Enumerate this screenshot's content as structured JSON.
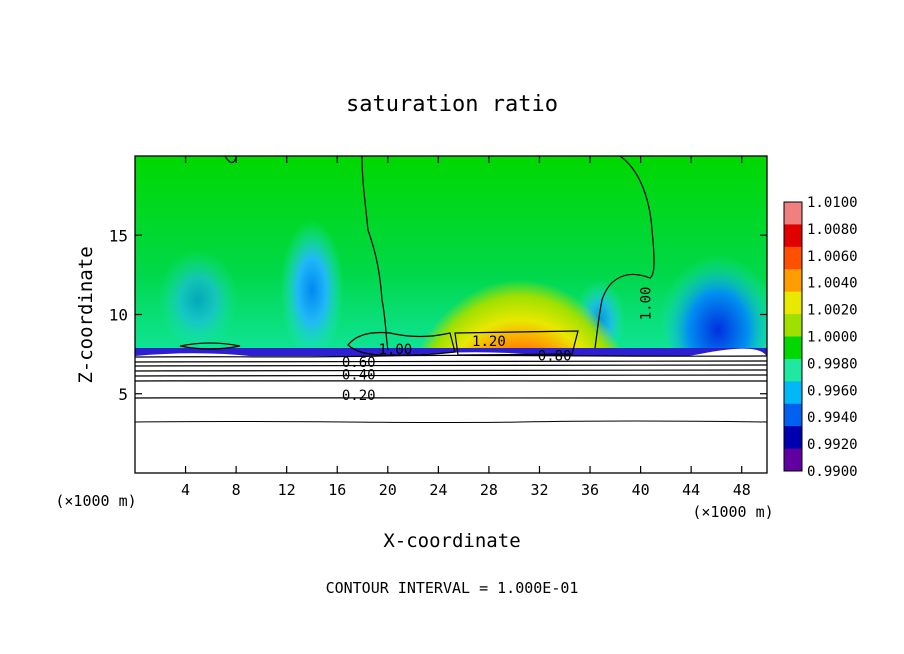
{
  "chart_data": {
    "type": "heatmap",
    "title": "saturation ratio",
    "xlabel": "X-coordinate",
    "ylabel": "Z-coordinate",
    "x_unit_label": "(×1000 m)",
    "z_unit_label": "(×1000 m)",
    "footer": "CONTOUR INTERVAL = 1.000E-01",
    "xlim": [
      0,
      50
    ],
    "ylim": [
      0,
      20
    ],
    "x_ticks": [
      4,
      8,
      12,
      16,
      20,
      24,
      28,
      32,
      36,
      40,
      44,
      48
    ],
    "y_ticks": [
      5,
      10,
      15
    ],
    "colorbar": {
      "levels": [
        "1.0100",
        "1.0080",
        "1.0060",
        "1.0040",
        "1.0020",
        "1.0000",
        "0.9980",
        "0.9960",
        "0.9940",
        "0.9920",
        "0.9900"
      ],
      "range": [
        0.99,
        1.01
      ],
      "colors": [
        "#f08080",
        "#e00000",
        "#ff5000",
        "#ff9c00",
        "#e8e800",
        "#a0e000",
        "#00d800",
        "#20e8a0",
        "#00b8f8",
        "#0060f0",
        "#0000b0",
        "#6000a0"
      ]
    },
    "contour_labels": [
      {
        "text": "1.00",
        "x": 40.8,
        "z": 10.7,
        "rotate": -90
      },
      {
        "text": "1.20",
        "x": 28.0,
        "z": 8.0
      },
      {
        "text": "0.80",
        "x": 33.2,
        "z": 7.1
      },
      {
        "text": "1.00",
        "x": 20.6,
        "z": 7.5
      },
      {
        "text": "0.60",
        "x": 17.7,
        "z": 6.7
      },
      {
        "text": "0.40",
        "x": 17.7,
        "z": 5.9
      },
      {
        "text": "0.20",
        "x": 17.7,
        "z": 4.6
      }
    ],
    "contour_levels": [
      {
        "value": 0.2,
        "z": 4.8
      },
      {
        "value": 0.4,
        "z": 6.1
      },
      {
        "value": 0.6,
        "z": 6.7
      },
      {
        "value": 0.8,
        "z": 7.1
      }
    ]
  }
}
